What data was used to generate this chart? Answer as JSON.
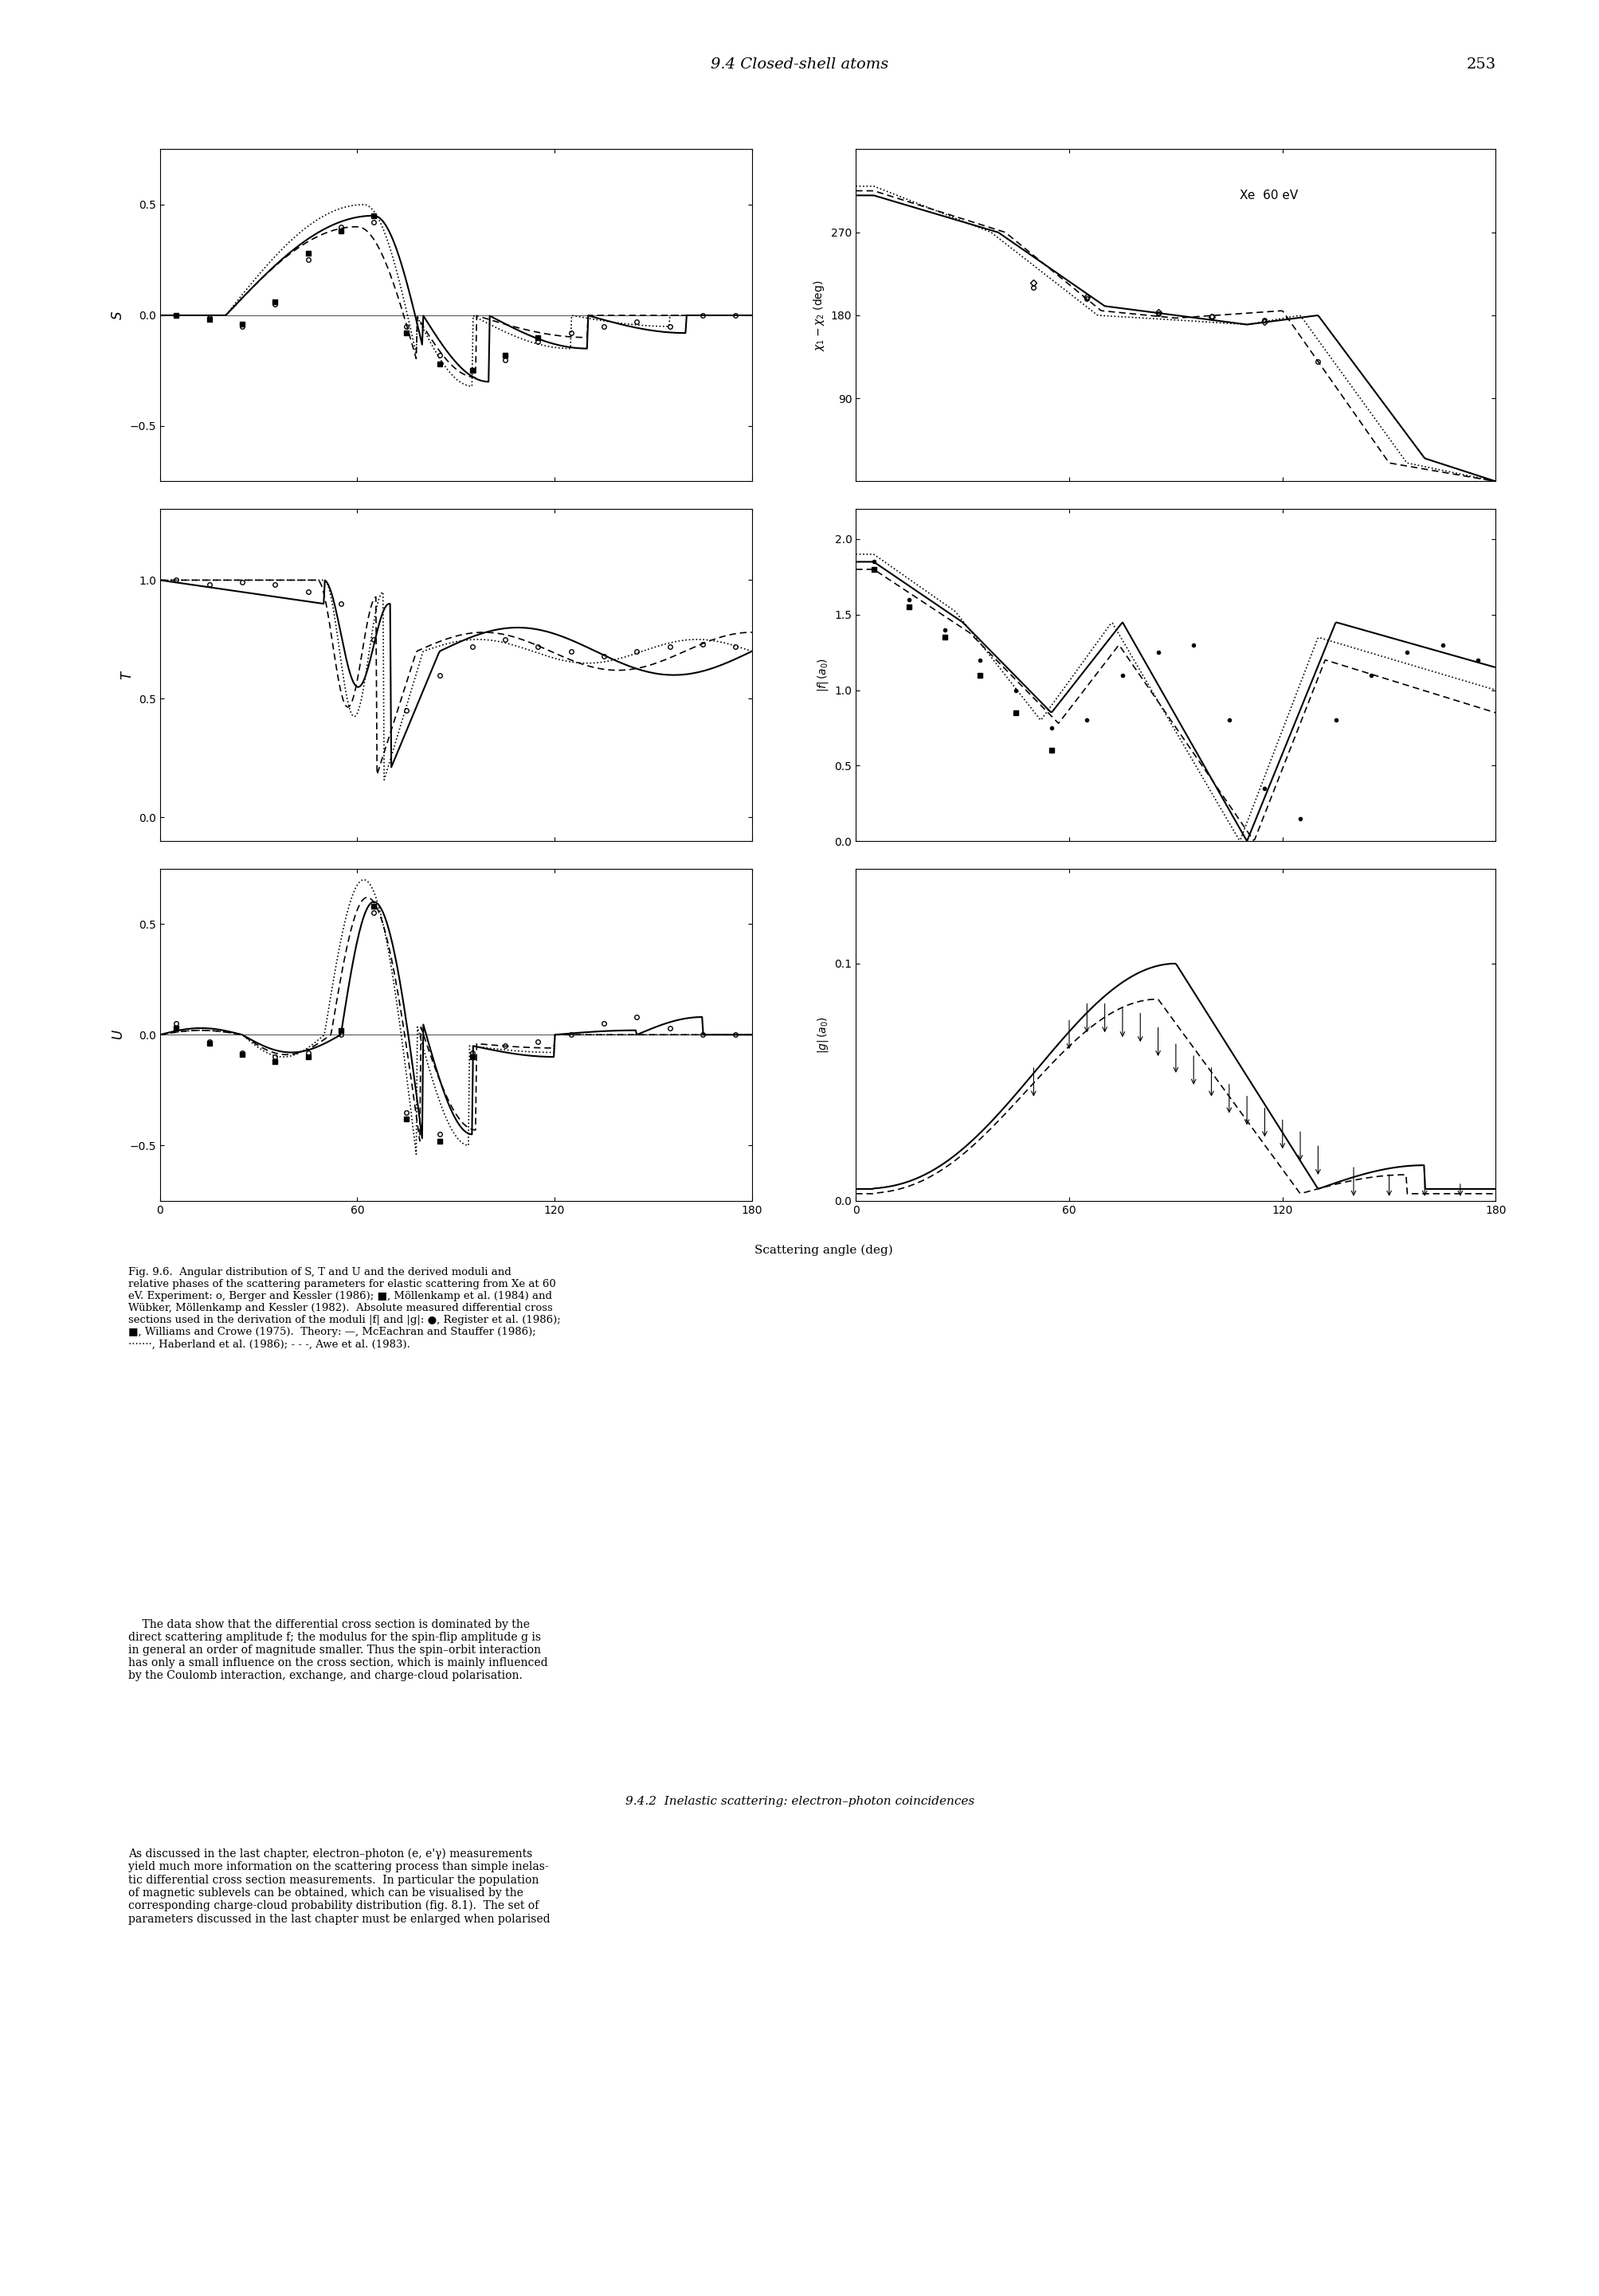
{
  "title_header": "9.4 Closed-shell atoms",
  "page_number": "253",
  "figure_caption": "Fig. 9.6.  Angular distribution of S, T and U and the derived moduli and\nrelative phases of the scattering parameters for elastic scattering from Xe at 60\neV. Experiment: o, Berger and Kessler (1986); ■, Möllenkamp et al. (1984) and\nWübker, Möllenkamp and Kessler (1982).  Absolute measured differential cross\nsections used in the derivation of the moduli |f| and |g|: ●, Register et al. (1986);\n■, Williams and Crowe (1975).  Theory: —, McEachran and Stauffer (1986);\n·······, Haberland et al. (1986); - - -, Awe et al. (1983).",
  "body_text1": "    The data show that the differential cross section is dominated by the\ndirect scattering amplitude f; the modulus for the spin-flip amplitude g is\nin general an order of magnitude smaller. Thus the spin–orbit interaction\nhas only a small influence on the cross section, which is mainly influenced\nby the Coulomb interaction, exchange, and charge-cloud polarisation.",
  "body_text2": "9.4.2  Inelastic scattering: electron–photon coincidences",
  "body_text3": "As discussed in the last chapter, electron–photon (e, e'γ) measurements\nyield much more information on the scattering process than simple inelas-\ntic differential cross section measurements.  In particular the population\nof magnetic sublevels can be obtained, which can be visualised by the\ncorresponding charge-cloud probability distribution (fig. 8.1).  The set of\nparameters discussed in the last chapter must be enlarged when polarised",
  "xlabel": "Scattering angle (deg)",
  "xe_label": "Xe  60 eV",
  "S_ylim": [
    -0.75,
    0.75
  ],
  "S_yticks": [
    -0.5,
    0,
    0.5
  ],
  "T_ylim": [
    -0.1,
    1.3
  ],
  "T_yticks": [
    0,
    0.5,
    1.0
  ],
  "U_ylim": [
    -0.75,
    0.75
  ],
  "U_yticks": [
    -0.5,
    0,
    0.5
  ],
  "gamma_ylim": [
    0,
    360
  ],
  "gamma_yticks": [
    90,
    180,
    270
  ],
  "f_ylim": [
    0,
    2.2
  ],
  "f_yticks": [
    0,
    0.5,
    1.0,
    1.5,
    2.0
  ],
  "g_ylim": [
    0,
    0.14
  ],
  "g_yticks": [
    0,
    0.1
  ],
  "xlim": [
    0,
    180
  ],
  "xticks": [
    0,
    60,
    120,
    180
  ],
  "background_color": "#ffffff"
}
